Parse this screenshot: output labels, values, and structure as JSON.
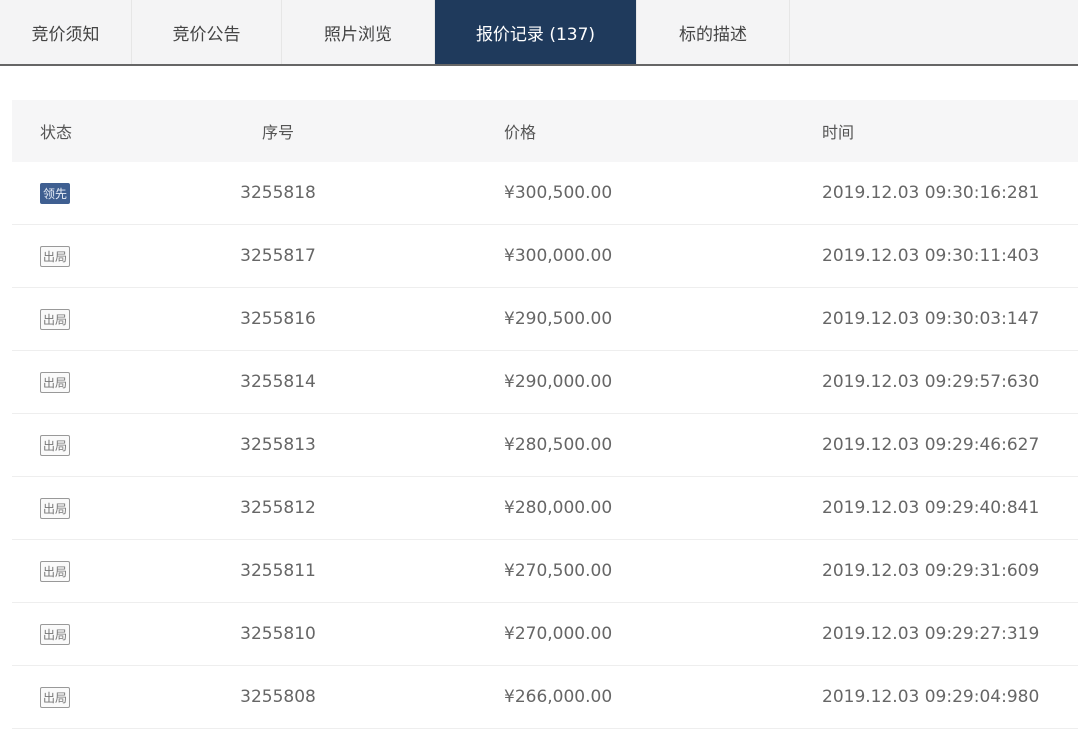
{
  "tabs": [
    {
      "label": "竞价须知",
      "active": false
    },
    {
      "label": "竞价公告",
      "active": false
    },
    {
      "label": "照片浏览",
      "active": false
    },
    {
      "label": "报价记录 (137)",
      "active": true
    },
    {
      "label": "标的描述",
      "active": false
    }
  ],
  "table": {
    "headers": [
      "状态",
      "序号",
      "价格",
      "时间"
    ],
    "rows": [
      {
        "status": "领先",
        "lead": true,
        "seq": "3255818",
        "price": "¥300,500.00",
        "time": "2019.12.03 09:30:16:281"
      },
      {
        "status": "出局",
        "lead": false,
        "seq": "3255817",
        "price": "¥300,000.00",
        "time": "2019.12.03 09:30:11:403"
      },
      {
        "status": "出局",
        "lead": false,
        "seq": "3255816",
        "price": "¥290,500.00",
        "time": "2019.12.03 09:30:03:147"
      },
      {
        "status": "出局",
        "lead": false,
        "seq": "3255814",
        "price": "¥290,000.00",
        "time": "2019.12.03 09:29:57:630"
      },
      {
        "status": "出局",
        "lead": false,
        "seq": "3255813",
        "price": "¥280,500.00",
        "time": "2019.12.03 09:29:46:627"
      },
      {
        "status": "出局",
        "lead": false,
        "seq": "3255812",
        "price": "¥280,000.00",
        "time": "2019.12.03 09:29:40:841"
      },
      {
        "status": "出局",
        "lead": false,
        "seq": "3255811",
        "price": "¥270,500.00",
        "time": "2019.12.03 09:29:31:609"
      },
      {
        "status": "出局",
        "lead": false,
        "seq": "3255810",
        "price": "¥270,000.00",
        "time": "2019.12.03 09:29:27:319"
      },
      {
        "status": "出局",
        "lead": false,
        "seq": "3255808",
        "price": "¥266,000.00",
        "time": "2019.12.03 09:29:04:980"
      }
    ]
  },
  "colors": {
    "active_tab": "#1f3a5c",
    "lead_badge": "#3f5f91"
  }
}
